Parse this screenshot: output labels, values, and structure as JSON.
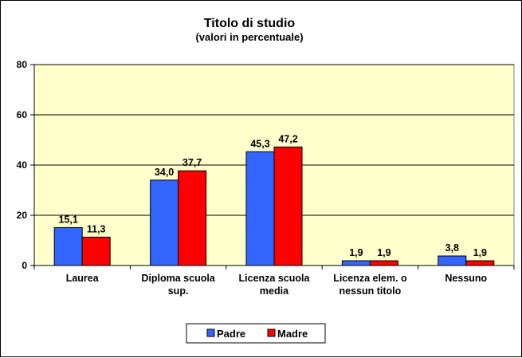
{
  "chart_data": {
    "type": "bar",
    "title": "Titolo di studio",
    "subtitle": "(valori in percentuale)",
    "categories": [
      [
        "Laurea"
      ],
      [
        "Diploma scuola",
        "sup."
      ],
      [
        "Licenza scuola",
        "media"
      ],
      [
        "Licenza elem. o",
        "nessun titolo"
      ],
      [
        "Nessuno"
      ]
    ],
    "series": [
      {
        "name": "Padre",
        "values": [
          15.1,
          34.0,
          45.3,
          1.9,
          3.8
        ],
        "labels": [
          "15,1",
          "34,0",
          "45,3",
          "1,9",
          "3,8"
        ],
        "color": "#3366FF"
      },
      {
        "name": "Madre",
        "values": [
          11.3,
          37.7,
          47.2,
          1.9,
          1.9
        ],
        "labels": [
          "11,3",
          "37,7",
          "47,2",
          "1,9",
          "1,9"
        ],
        "color": "#FF0000"
      }
    ],
    "ylim": [
      0,
      80
    ],
    "yticks": [
      0,
      20,
      40,
      60,
      80
    ],
    "grid": true,
    "legend_position": "bottom-center",
    "plot_background": "#FFFFCC"
  }
}
